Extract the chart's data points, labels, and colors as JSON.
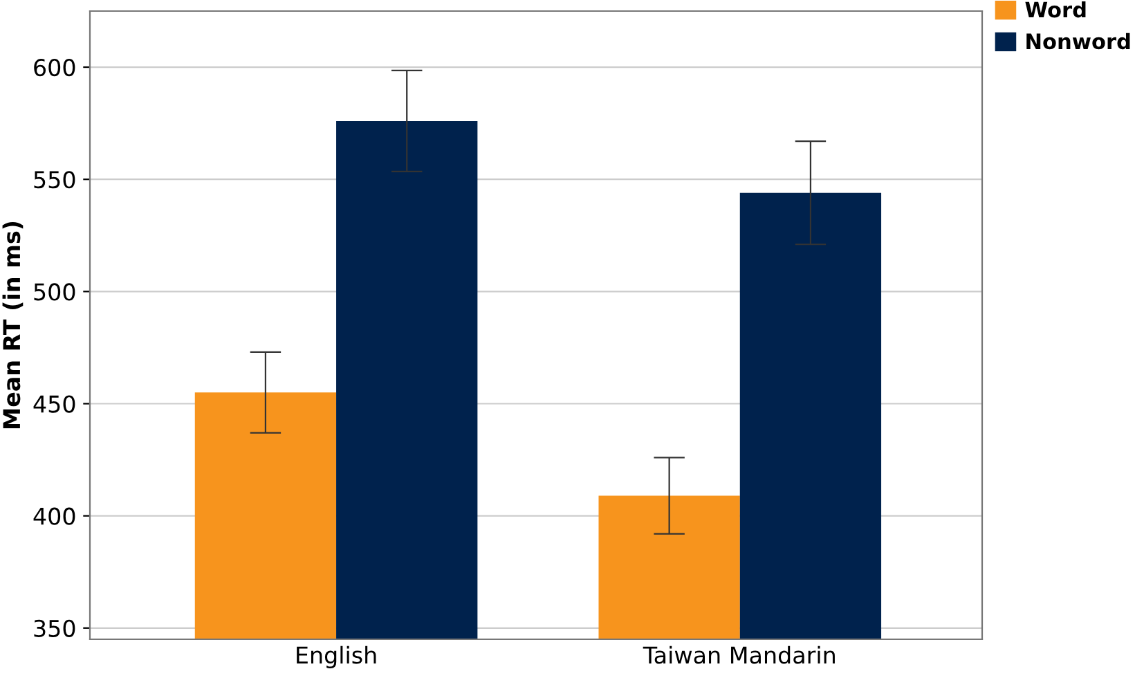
{
  "chart_data": {
    "type": "bar",
    "ylabel": "Mean RT (in ms)",
    "categories": [
      "English",
      "Taiwan Mandarin"
    ],
    "series": [
      {
        "name": "Word",
        "color": "#f7941d",
        "values": [
          455,
          409
        ],
        "errors": [
          18,
          17
        ]
      },
      {
        "name": "Nonword",
        "color": "#00224d",
        "values": [
          576,
          544
        ],
        "errors": [
          22.5,
          23
        ]
      }
    ],
    "ylim": [
      345,
      625
    ],
    "yticks": [
      350,
      400,
      450,
      500,
      550,
      600
    ],
    "grid": "y",
    "legend": "top right"
  }
}
